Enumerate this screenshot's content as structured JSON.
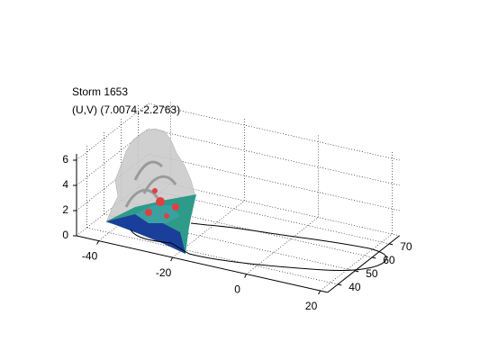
{
  "chart_data": {
    "type": "surface3d",
    "title": [
      "Storm 1653",
      "(U,V) (7.0074,-2.2763)"
    ],
    "xlim": [
      -46,
      22
    ],
    "ylim": [
      34,
      76
    ],
    "zlim": [
      0,
      6.5
    ],
    "xticks": [
      -40,
      -20,
      0,
      20
    ],
    "yticks": [
      40,
      50,
      60,
      70
    ],
    "zticks": [
      0,
      2,
      4,
      6
    ],
    "grid": true
  }
}
